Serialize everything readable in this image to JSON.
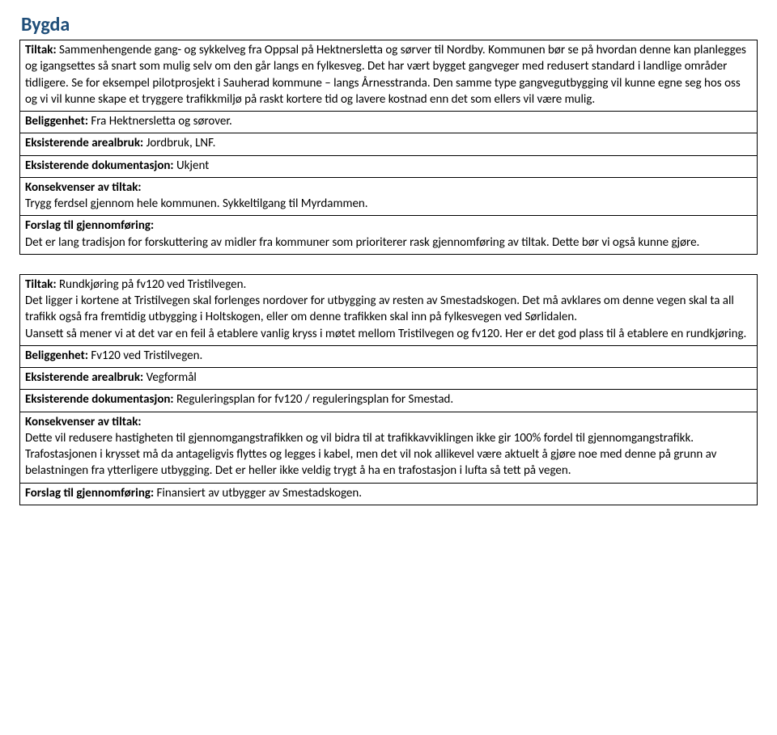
{
  "title": "Bygda",
  "box1": {
    "r1_label": "Tiltak:",
    "r1_text": " Sammenhengende gang- og sykkelveg fra Oppsal på Hektnersletta og sørver til Nordby. Kommunen bør se på hvordan denne kan planlegges og igangsettes så snart som mulig selv om den går langs en fylkesveg. Det har vært bygget gangveger med redusert standard i landlige områder tidligere. Se for eksempel pilotprosjekt i Sauherad  kommune – langs Årnesstranda. Den samme type gangvegutbygging vil kunne egne seg hos oss og vi vil kunne skape et tryggere trafikkmiljø på raskt kortere tid og lavere kostnad enn det som ellers vil være mulig.",
    "r2_label": "Beliggenhet:",
    "r2_text": " Fra Hektnersletta og sørover.",
    "r3_label": "Eksisterende arealbruk:",
    "r3_text": " Jordbruk, LNF.",
    "r4_label": "Eksisterende dokumentasjon:",
    "r4_text": "  Ukjent",
    "r5_label": "Konsekvenser av tiltak:",
    "r5_text": "Trygg ferdsel gjennom hele kommunen. Sykkeltilgang til Myrdammen.",
    "r6_label": "Forslag til gjennomføring:",
    "r6_text": "Det er lang tradisjon for forskuttering av midler fra kommuner som prioriterer rask gjennomføring av tiltak. Dette bør vi også kunne gjøre."
  },
  "box2": {
    "r1_label": "Tiltak:",
    "r1_text": " Rundkjøring på fv120 ved Tristilvegen.",
    "r1_body": "Det ligger i kortene at Tristilvegen skal forlenges nordover for utbygging av resten av Smestadskogen. Det må avklares om denne vegen skal ta all trafikk også fra fremtidig utbygging i Holtskogen, eller om denne trafikken skal inn på fylkesvegen ved Sørlidalen.",
    "r1_body2": "Uansett så mener vi at det var en feil å etablere vanlig kryss i møtet mellom Tristilvegen og fv120. Her er det god plass til å etablere en rundkjøring.",
    "r2_label": "Beliggenhet:",
    "r2_text": " Fv120 ved Tristilvegen.",
    "r3_label": "Eksisterende arealbruk:",
    "r3_text": " Vegformål",
    "r4_label": "Eksisterende dokumentasjon:",
    "r4_text": " Reguleringsplan for fv120 / reguleringsplan for Smestad.",
    "r5_label": "Konsekvenser av tiltak:",
    "r5_text": "Dette vil redusere hastigheten til gjennomgangstrafikken og vil bidra til at trafikkavviklingen ikke gir 100% fordel til gjennomgangstrafikk.  Trafostasjonen i krysset må da antageligvis flyttes og legges i kabel, men det vil nok allikevel være aktuelt å gjøre noe med denne på grunn av belastningen fra ytterligere utbygging. Det er heller ikke veldig trygt å ha en trafostasjon i lufta så tett på vegen.",
    "r6_label": "Forslag til gjennomføring:",
    "r6_text": " Finansiert av utbygger av Smestadskogen."
  }
}
